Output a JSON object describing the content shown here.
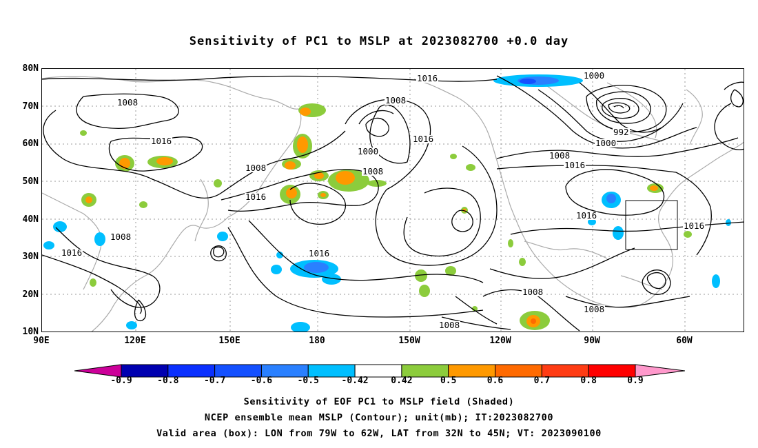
{
  "title": "Sensitivity of PC1 to MSLP at 2023082700 +0.0 day",
  "map": {
    "lat_labels": [
      "80N",
      "70N",
      "60N",
      "50N",
      "40N",
      "30N",
      "20N",
      "10N"
    ],
    "lon_labels": [
      "90E",
      "120E",
      "150E",
      "180",
      "150W",
      "120W",
      "90W",
      "60W"
    ],
    "contour_labels": [
      "1016",
      "1000",
      "1008",
      "1008",
      "1016",
      "1000",
      "1016",
      "1008",
      "1008",
      "992",
      "1000",
      "1008",
      "1016",
      "1016",
      "1008",
      "1016",
      "1016",
      "1016",
      "1016",
      "1008",
      "1008",
      "1008"
    ],
    "valid_box": {
      "lon_from": "79W",
      "lon_to": "62W",
      "lat_from": "32N",
      "lat_to": "45N"
    }
  },
  "colorbar": {
    "labels": [
      "-0.9",
      "-0.8",
      "-0.7",
      "-0.6",
      "-0.5",
      "-0.42",
      "0.42",
      "0.5",
      "0.6",
      "0.7",
      "0.8",
      "0.9"
    ],
    "colors": [
      "#0000b0",
      "#0a30ff",
      "#1450ff",
      "#2a80ff",
      "#00bfff",
      "#ffffff",
      "#8ccc3c",
      "#ff9900",
      "#ff6a00",
      "#ff3c14",
      "#ff0000"
    ],
    "left_extend_color": "#cc0099",
    "right_extend_color": "#ff99cc"
  },
  "captions": [
    "Sensitivity of EOF PC1 to MSLP field (Shaded)",
    "NCEP ensemble mean MSLP (Contour); unit(mb); IT:2023082700",
    "Valid area (box): LON from 79W to 62W, LAT from 32N to 45N; VT: 2023090100"
  ]
}
